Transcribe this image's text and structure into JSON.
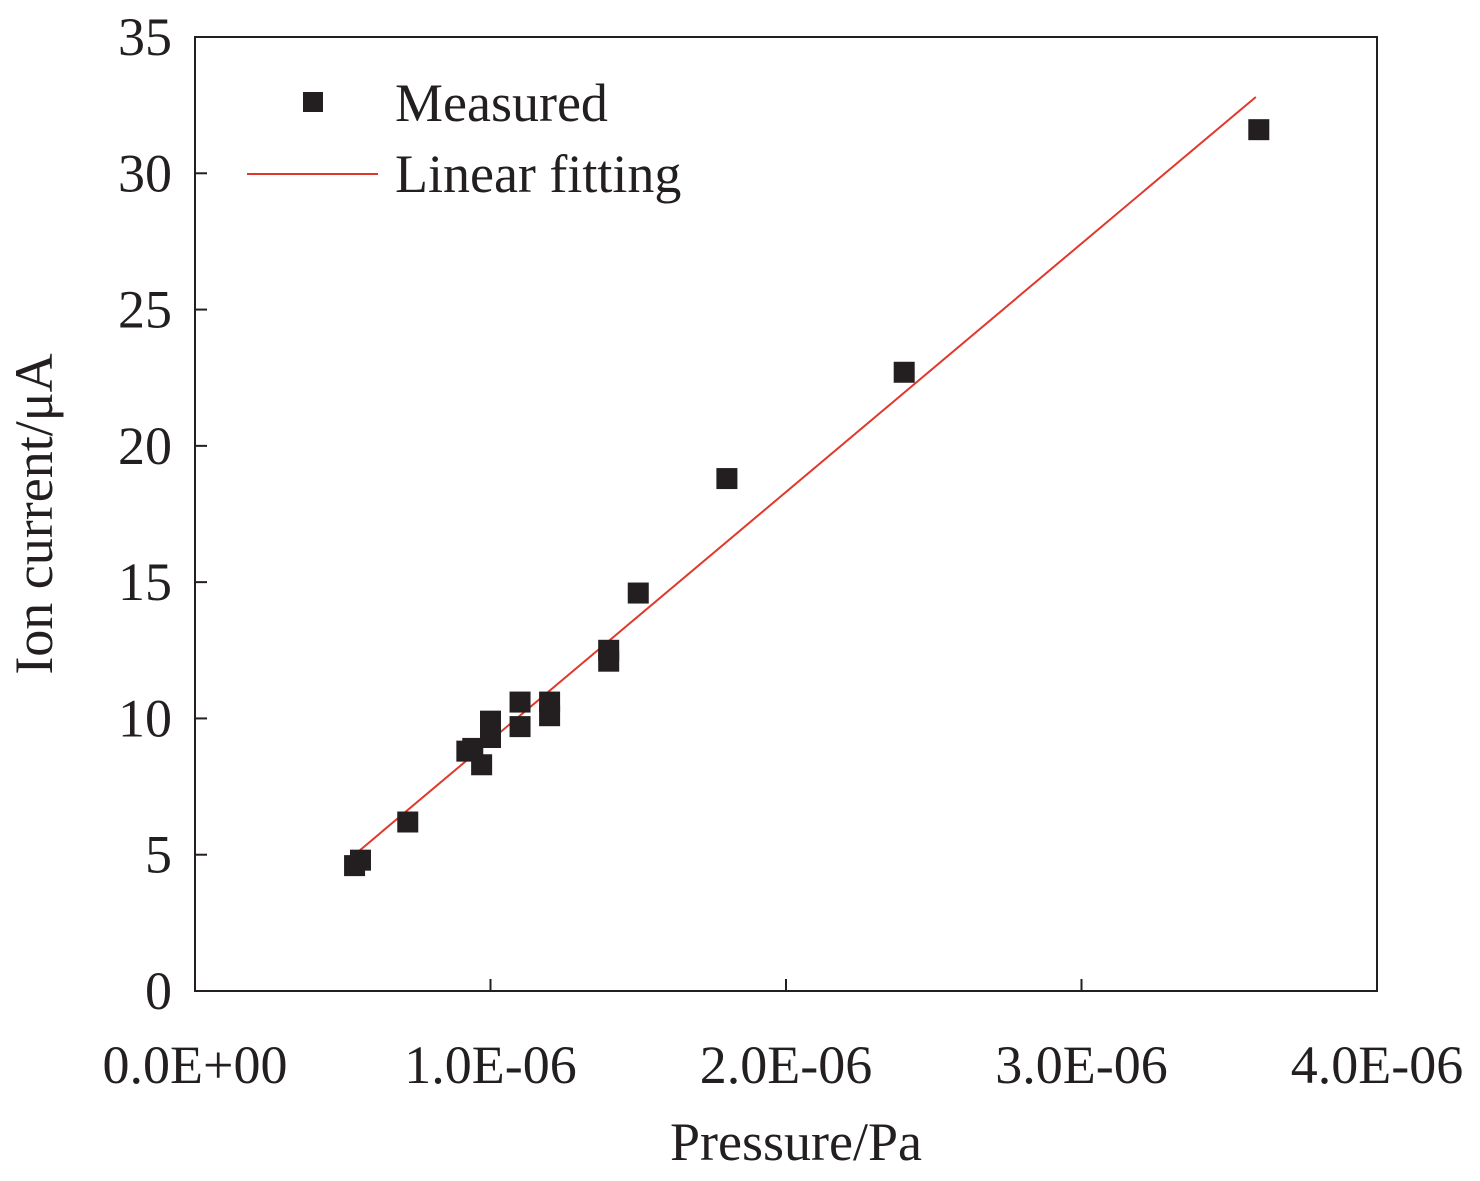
{
  "chart_data": {
    "type": "scatter",
    "title": "",
    "xlabel": "Pressure/Pa",
    "ylabel": "Ion current/μA",
    "xlim": [
      0,
      4e-06
    ],
    "ylim": [
      0,
      35
    ],
    "x_ticks": [
      0,
      1e-06,
      2e-06,
      3e-06,
      4e-06
    ],
    "x_tick_labels": [
      "0.0E+00",
      "1.0E-06",
      "2.0E-06",
      "3.0E-06",
      "4.0E-06"
    ],
    "y_ticks": [
      0,
      5,
      10,
      15,
      20,
      25,
      30,
      35
    ],
    "y_tick_labels": [
      "0",
      "5",
      "10",
      "15",
      "20",
      "25",
      "30",
      "35"
    ],
    "grid": false,
    "legend_position": "top-left",
    "series": [
      {
        "name": "Measured",
        "kind": "scatter",
        "marker": "square",
        "color": "#231f20",
        "x": [
          5.4e-07,
          5.6e-07,
          7.2e-07,
          9.2e-07,
          9.4e-07,
          9.7e-07,
          1e-06,
          1e-06,
          1.1e-06,
          1.1e-06,
          1.2e-06,
          1.2e-06,
          1.4e-06,
          1.4e-06,
          1.5e-06,
          1.8e-06,
          2.4e-06,
          3.6e-06
        ],
        "y": [
          4.6,
          4.8,
          6.2,
          8.8,
          8.9,
          8.3,
          9.9,
          9.3,
          10.6,
          9.7,
          10.6,
          10.1,
          12.5,
          12.1,
          14.6,
          18.8,
          22.7,
          31.6
        ]
      },
      {
        "name": "Linear fitting",
        "kind": "line",
        "color": "#e0392b",
        "x": [
          5.4e-07,
          3.59e-06
        ],
        "y": [
          5.0,
          32.8
        ]
      }
    ]
  }
}
